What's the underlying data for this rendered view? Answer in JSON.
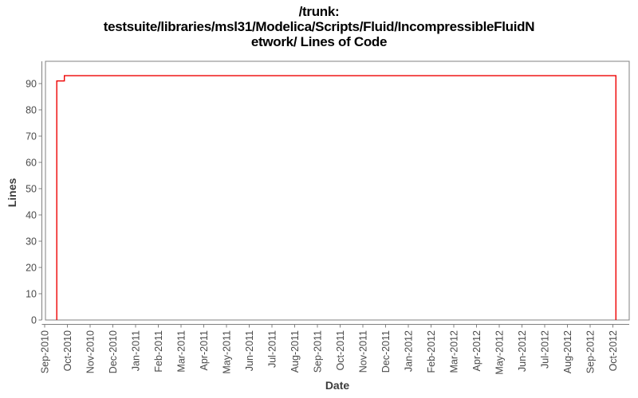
{
  "title": {
    "lines": [
      "/trunk:",
      "testsuite/libraries/msl31/Modelica/Scripts/Fluid/IncompressibleFluidN",
      "etwork/ Lines of Code"
    ]
  },
  "colors": {
    "background": "#ffffff",
    "frame": "#808080",
    "line": "#ee0000",
    "tick_text": "#4a4a4a",
    "axis_title_text": "#3c3c3c",
    "title_text": "#000000"
  },
  "chart_data": {
    "type": "line",
    "line_style": "step",
    "title": "/trunk: testsuite/libraries/msl31/Modelica/Scripts/Fluid/IncompressibleFluidNetwork/ Lines of Code",
    "xlabel": "Date",
    "ylabel": "Lines",
    "grid": false,
    "legend_position": "none",
    "ylim": [
      0,
      98
    ],
    "y_ticks": [
      0,
      10,
      20,
      30,
      40,
      50,
      60,
      70,
      80,
      90
    ],
    "x_tick_labels": [
      "Sep-2010",
      "Oct-2010",
      "Nov-2010",
      "Dec-2010",
      "Jan-2011",
      "Feb-2011",
      "Mar-2011",
      "Apr-2011",
      "May-2011",
      "Jun-2011",
      "Jul-2011",
      "Aug-2011",
      "Sep-2011",
      "Oct-2011",
      "Nov-2011",
      "Dec-2011",
      "Jan-2012",
      "Feb-2012",
      "Mar-2012",
      "Apr-2012",
      "May-2012",
      "Jun-2012",
      "Jul-2012",
      "Aug-2012",
      "Sep-2012",
      "Oct-2012"
    ],
    "series": [
      {
        "name": "Lines of Code",
        "color": "#ee0000",
        "points": [
          {
            "date": "2010-09-17",
            "value": 0
          },
          {
            "date": "2010-09-17",
            "value": 91
          },
          {
            "date": "2010-09-27",
            "value": 91
          },
          {
            "date": "2010-09-27",
            "value": 93
          },
          {
            "date": "2012-10-05",
            "value": 93
          },
          {
            "date": "2012-10-05",
            "value": 0
          }
        ]
      }
    ]
  }
}
